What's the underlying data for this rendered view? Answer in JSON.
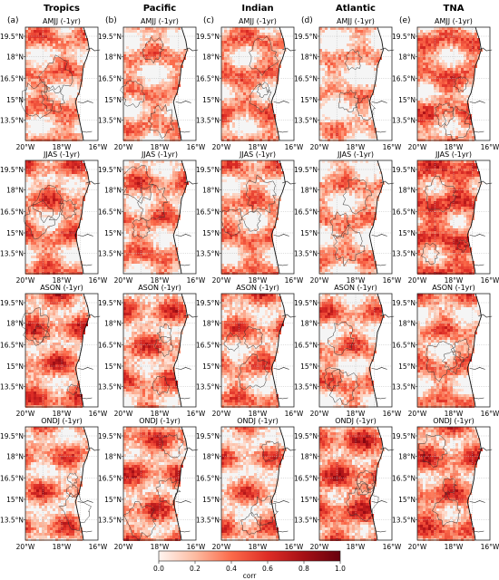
{
  "figure": {
    "columns": [
      {
        "letter": "(a)",
        "title": "Tropics"
      },
      {
        "letter": "(b)",
        "title": "Pacific"
      },
      {
        "letter": "(c)",
        "title": "Indian"
      },
      {
        "letter": "(d)",
        "title": "Atlantic"
      },
      {
        "letter": "(e)",
        "title": "TNA"
      }
    ],
    "rows": [
      {
        "season": "AMJJ (-1yr)"
      },
      {
        "season": "JJAS (-1yr)"
      },
      {
        "season": "ASON (-1yr)"
      },
      {
        "season": "ONDJ (-1yr)"
      }
    ],
    "lat_ticks": [
      "19.5°N",
      "18°N",
      "16.5°N",
      "15°N",
      "13.5°N"
    ],
    "lon_ticks": [
      "20°W",
      "18°W",
      "16°W"
    ],
    "colorbar": {
      "label": "corr",
      "ticks": [
        "0.0",
        "0.2",
        "0.4",
        "0.6",
        "0.8",
        "1.0"
      ],
      "colormap": "Reds",
      "range": [
        0.0,
        1.0
      ]
    },
    "colors": {
      "land": "#ffffff",
      "ocean_light": "#fbe3d6",
      "ocean_mid": "#f2916f",
      "ocean_dark": "#b01b1f",
      "frame": "#222222",
      "grid": "#bcbcbc"
    }
  }
}
